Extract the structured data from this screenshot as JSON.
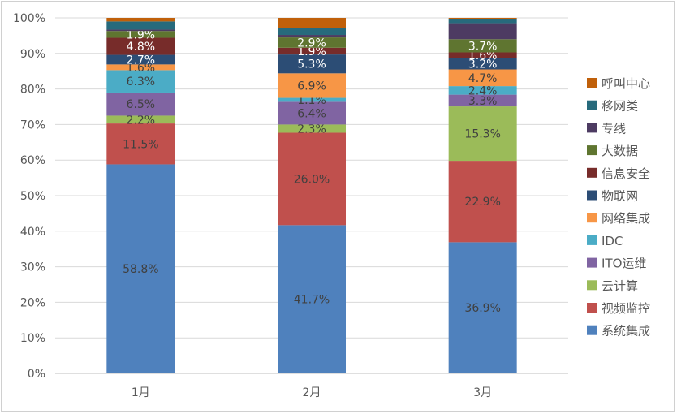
{
  "chart_data": {
    "type": "bar",
    "stacked": true,
    "percent": true,
    "categories": [
      "1月",
      "2月",
      "3月"
    ],
    "ylim": [
      0,
      100
    ],
    "y_ticks": [
      "0%",
      "10%",
      "20%",
      "30%",
      "40%",
      "50%",
      "60%",
      "70%",
      "80%",
      "90%",
      "100%"
    ],
    "grid": true,
    "legend_position": "right",
    "series": [
      {
        "name": "系统集成",
        "color": "#4F81BD",
        "values": [
          58.8,
          41.7,
          36.9
        ],
        "labels": [
          "58.8%",
          "41.7%",
          "36.9%"
        ]
      },
      {
        "name": "视频监控",
        "color": "#C0504D",
        "values": [
          11.5,
          26.0,
          22.9
        ],
        "labels": [
          "11.5%",
          "26.0%",
          "22.9%"
        ]
      },
      {
        "name": "云计算",
        "color": "#9BBB59",
        "values": [
          2.2,
          2.3,
          15.3
        ],
        "labels": [
          "2.2%",
          "2.3%",
          "15.3%"
        ]
      },
      {
        "name": "ITO运维",
        "color": "#8064A2",
        "values": [
          6.5,
          6.4,
          3.3
        ],
        "labels": [
          "6.5%",
          "6.4%",
          "3.3%"
        ]
      },
      {
        "name": "IDC",
        "color": "#4BACC6",
        "values": [
          6.3,
          1.1,
          2.4
        ],
        "labels": [
          "6.3%",
          "1.1%",
          "2.4%"
        ]
      },
      {
        "name": "网络集成",
        "color": "#F79646",
        "values": [
          1.6,
          6.9,
          4.7
        ],
        "labels": [
          "1.6%",
          "6.9%",
          "4.7%"
        ]
      },
      {
        "name": "物联网",
        "color": "#2C4D75",
        "values": [
          2.7,
          5.3,
          3.2
        ],
        "labels": [
          "2.7%",
          "5.3%",
          "3.2%"
        ]
      },
      {
        "name": "信息安全",
        "color": "#772C2A",
        "values": [
          4.8,
          1.9,
          1.6
        ],
        "labels": [
          "4.8%",
          "1.9%",
          "1.6%"
        ]
      },
      {
        "name": "大数据",
        "color": "#5F7530",
        "values": [
          1.9,
          2.9,
          3.7
        ],
        "labels": [
          "1.9%",
          "2.9%",
          "3.7%"
        ]
      },
      {
        "name": "专线",
        "color": "#4D3B62",
        "values": [
          0.4,
          0.7,
          4.5
        ],
        "labels": [
          "",
          "",
          ""
        ]
      },
      {
        "name": "移网类",
        "color": "#276A7C",
        "values": [
          2.3,
          1.9,
          1.2
        ],
        "labels": [
          "",
          "",
          ""
        ]
      },
      {
        "name": "呼叫中心",
        "color": "#C0600A",
        "values": [
          1.0,
          2.9,
          0.3
        ],
        "labels": [
          "",
          "",
          ""
        ]
      }
    ]
  }
}
